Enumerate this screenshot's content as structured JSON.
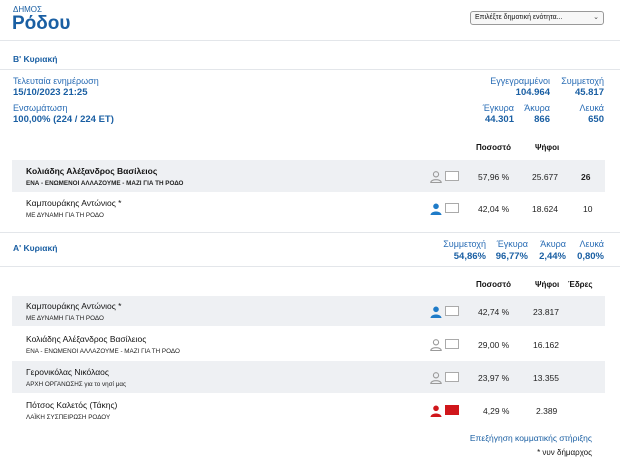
{
  "header": {
    "kicker": "ΔΗΜΟΣ",
    "title": "Ρόδου",
    "select_value": "Επιλέξτε δημοτική ενότητα..."
  },
  "round2": {
    "heading": "Β' Κυριακή",
    "last_update_label": "Τελευταία ενημέρωση",
    "last_update_value": "15/10/2023 21:25",
    "integrated_label": "Ενσωμάτωση",
    "integrated_value": "100,00% (224 / 224 ΕΤ)",
    "stats": {
      "registered_label": "Εγγεγραμμένοι",
      "registered_value": "104.964",
      "turnout_label": "Συμμετοχή",
      "turnout_value": "45.817",
      "valid_label": "Έγκυρα",
      "valid_value": "44.301",
      "invalid_label": "Άκυρα",
      "invalid_value": "866",
      "blank_label": "Λευκά",
      "blank_value": "650"
    },
    "col_percent": "Ποσοστό",
    "col_votes": "Ψήφοι",
    "rows": [
      {
        "name": "Κολιάδης Αλέξανδρος Βασίλειος",
        "party": "ΕΝΑ - ΕΝΩΜΕΝΟΙ ΑΛΛΑΖΟΥΜΕ - ΜΑΖΙ ΓΙΑ ΤΗ ΡΟΔΟ",
        "percent": "57,96 %",
        "votes": "25.677",
        "seats": "26",
        "person_color": "#9a9a9a",
        "box_color": "#ffffff"
      },
      {
        "name": "Καμπουράκης Αντώνιος *",
        "party": "ΜΕ ΔΥΝΑΜΗ ΓΙΑ ΤΗ ΡΟΔΟ",
        "percent": "42,04 %",
        "votes": "18.624",
        "seats": "10",
        "person_color": "#1e7bc8",
        "box_color": "#ffffff"
      }
    ]
  },
  "round1": {
    "heading": "Α' Κυριακή",
    "stats": {
      "turnout_label": "Συμμετοχή",
      "turnout_value": "54,86%",
      "valid_label": "Έγκυρα",
      "valid_value": "96,77%",
      "invalid_label": "Άκυρα",
      "invalid_value": "2,44%",
      "blank_label": "Λευκά",
      "blank_value": "0,80%"
    },
    "col_percent": "Ποσοστό",
    "col_votes": "Ψήφοι",
    "col_seats": "Έδρες",
    "rows": [
      {
        "name": "Καμπουράκης Αντώνιος *",
        "party": "ΜΕ ΔΥΝΑΜΗ ΓΙΑ ΤΗ ΡΟΔΟ",
        "percent": "42,74 %",
        "votes": "23.817",
        "person_color": "#1e7bc8",
        "box_color": "#ffffff"
      },
      {
        "name": "Κολιάδης Αλέξανδρος Βασίλειος",
        "party": "ΕΝΑ - ΕΝΩΜΕΝΟΙ ΑΛΛΑΖΟΥΜΕ - ΜΑΖΙ ΓΙΑ ΤΗ ΡΟΔΟ",
        "percent": "29,00 %",
        "votes": "16.162",
        "person_color": "#9a9a9a",
        "box_color": "#ffffff"
      },
      {
        "name": "Γερονικόλας Νικόλαος",
        "party": "ΑΡΧΗ ΟΡΓΑΝΩΣΗΣ για το νησί μας",
        "percent": "23,97 %",
        "votes": "13.355",
        "person_color": "#9a9a9a",
        "box_color": "#ffffff"
      },
      {
        "name": "Πότσος Καλετός (Τάκης)",
        "party": "ΛΑΪΚΗ ΣΥΣΠΕΙΡΩΣΗ ΡΟΔΟΥ",
        "percent": "4,29 %",
        "votes": "2.389",
        "person_color": "#d0161b",
        "box_color": "#d0161b"
      }
    ]
  },
  "footer": {
    "link": "Επεξήγηση κομματικής στήριξης",
    "note": "* νυν δήμαρχος"
  }
}
